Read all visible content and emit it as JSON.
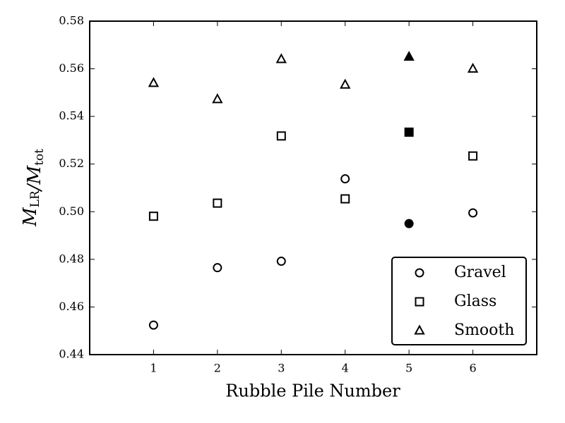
{
  "chart_data": {
    "type": "scatter",
    "xlabel": "Rubble Pile Number",
    "ylabel": "M_LR/M_tot",
    "x": [
      1,
      2,
      3,
      4,
      5,
      6
    ],
    "series": [
      {
        "name": "Gravel",
        "marker": "circle",
        "color": "#000000",
        "fill_colors": [
          "#ffffff",
          "#ffffff",
          "#ffffff",
          "#ffffff",
          "#000000",
          "#ffffff"
        ],
        "values": [
          0.4524,
          0.4765,
          0.4792,
          0.5138,
          0.495,
          0.4995
        ]
      },
      {
        "name": "Glass",
        "marker": "square",
        "color": "#000000",
        "fill_colors": [
          "#ffffff",
          "#ffffff",
          "#ffffff",
          "#ffffff",
          "#000000",
          "#ffffff"
        ],
        "values": [
          0.4981,
          0.5036,
          0.5318,
          0.5054,
          0.5334,
          0.5234
        ]
      },
      {
        "name": "Smooth",
        "marker": "triangle",
        "color": "#000000",
        "fill_colors": [
          "#ffffff",
          "#ffffff",
          "#ffffff",
          "#ffffff",
          "#000000",
          "#ffffff"
        ],
        "values": [
          0.554,
          0.5472,
          0.564,
          0.5533,
          0.565,
          0.56
        ]
      }
    ],
    "xlim": [
      0,
      7
    ],
    "xticks": [
      1,
      2,
      3,
      4,
      5,
      6
    ],
    "ylim": [
      0.44,
      0.58
    ],
    "yticks": [
      0.44,
      {
        "value": 0.46,
        "label": "0.46"
      },
      0.48,
      {
        "value": 0.5,
        "label": "0.50"
      },
      0.52,
      0.54,
      0.56,
      0.58
    ],
    "legend": "lower right",
    "grid": false
  }
}
